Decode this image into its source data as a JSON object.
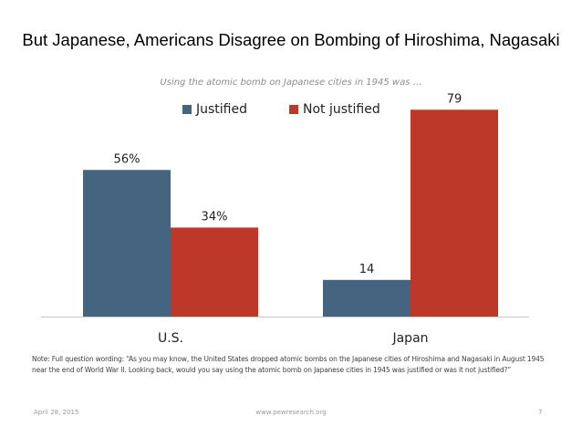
{
  "slide": {
    "title": "But Japanese, Americans Disagree on Bombing of Hiroshima, Nagasaki",
    "subtitle": "Using the atomic bomb on Japanese cities in 1945 was …",
    "note": "Note: Full question wording: “As you may know, the United States dropped atomic bombs on the Japanese cities of Hiroshima and Nagasaki in August 1945 near the end of World War II. Looking back, would you say using the atomic bomb on Japanese cities in 1945 was justified or was it not justified?”",
    "footer": {
      "date": "April 28, 2015",
      "url": "www.pewresearch.org",
      "page": "7"
    }
  },
  "colors": {
    "justified": "#44647f",
    "not_justified": "#bd3828",
    "axis": "#c8c8c8"
  },
  "chart_data": {
    "type": "bar",
    "title": "But Japanese, Americans Disagree on Bombing of Hiroshima, Nagasaki",
    "subtitle": "Using the atomic bomb on Japanese cities in 1945 was …",
    "categories": [
      "U.S.",
      "Japan"
    ],
    "series": [
      {
        "name": "Justified",
        "values": [
          56,
          14
        ],
        "labels": [
          "56%",
          "14"
        ],
        "color": "#44647f"
      },
      {
        "name": "Not justified",
        "values": [
          34,
          79
        ],
        "labels": [
          "34%",
          "79"
        ],
        "color": "#bd3828"
      }
    ],
    "xlabel": "",
    "ylabel": "",
    "ylim": [
      0,
      100
    ],
    "grid": false,
    "legend": "top-center"
  }
}
